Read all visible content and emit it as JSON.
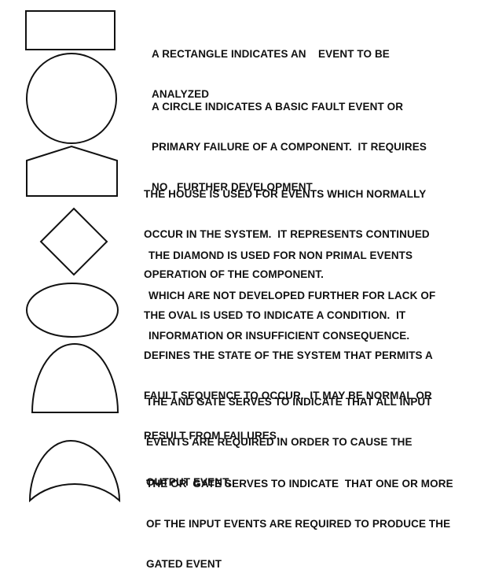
{
  "legend": [
    {
      "symbol": "rectangle",
      "lines": [
        "A RECTANGLE INDICATES AN    EVENT TO BE",
        "ANALYZED"
      ]
    },
    {
      "symbol": "circle",
      "lines": [
        "A CIRCLE INDICATES A BASIC FAULT EVENT OR",
        "PRIMARY FAILURE OF A COMPONENT.  IT REQUIRES",
        "NO   FURTHER DEVELOPMENT"
      ]
    },
    {
      "symbol": "house",
      "lines": [
        "THE HOUSE IS USED FOR EVENTS WHICH NORMALLY",
        "OCCUR IN THE SYSTEM.  IT REPRESENTS CONTINUED",
        "OPERATION OF THE COMPONENT."
      ]
    },
    {
      "symbol": "diamond",
      "lines": [
        "THE DIAMOND IS USED FOR NON PRIMAL EVENTS",
        "WHICH ARE NOT DEVELOPED FURTHER FOR LACK OF",
        "INFORMATION OR INSUFFICIENT CONSEQUENCE."
      ]
    },
    {
      "symbol": "oval",
      "lines": [
        "THE OVAL IS USED TO INDICATE A CONDITION.  IT",
        "DEFINES THE STATE OF THE SYSTEM THAT PERMITS A",
        "FAULT SEQUENCE TO OCCUR.  IT MAY BE NORMAL OR",
        "RESULT FROM FAILURES."
      ]
    },
    {
      "symbol": "and-gate",
      "lines": [
        "THE AND GATE SERVES TO INDICATE THAT ALL INPUT",
        "EVENTS ARE REQUIRED IN ORDER TO CAUSE THE",
        "OUTPUT EVENT."
      ]
    },
    {
      "symbol": "or-gate",
      "lines": [
        "THE OR  GATE SERVES TO INDICATE  THAT ONE OR MORE",
        "OF THE INPUT EVENTS ARE REQUIRED TO PRODUCE THE",
        "GATED EVENT"
      ]
    }
  ]
}
